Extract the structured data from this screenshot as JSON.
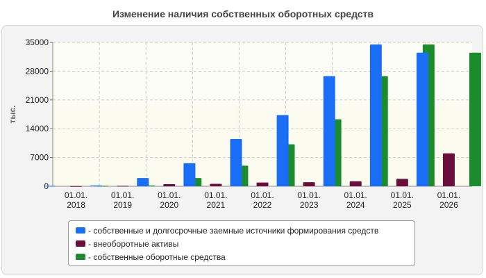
{
  "chart_data": {
    "type": "bar",
    "title": "Изменение наличия собственных оборотных средств",
    "ylabel": "тыс.",
    "ylim": [
      0,
      35000
    ],
    "yticks": [
      0,
      7000,
      14000,
      21000,
      28000,
      35000
    ],
    "categories": [
      [
        "01.01.",
        "2018"
      ],
      [
        "01.01.",
        "2019"
      ],
      [
        "01.01.",
        "2020"
      ],
      [
        "01.01.",
        "2021"
      ],
      [
        "01.01.",
        "2022"
      ],
      [
        "01.01.",
        "2023"
      ],
      [
        "01.01.",
        "2024"
      ],
      [
        "01.01.",
        "2025"
      ],
      [
        "01.01.",
        "2026"
      ]
    ],
    "series": [
      {
        "name": "- собственные и долгосрочные заемные источники формирования средств",
        "color": "#1a6ef5",
        "values": [
          100,
          200,
          2000,
          5600,
          11500,
          17300,
          26800,
          34500,
          32500
        ]
      },
      {
        "name": "- внеоборотные активы",
        "color": "#6b0f3a",
        "values": [
          50,
          100,
          500,
          600,
          900,
          1000,
          1200,
          1800,
          8000
        ]
      },
      {
        "name": "- собственные оборотные средства",
        "color": "#1a8c2e",
        "values": [
          100,
          200,
          2000,
          5000,
          10200,
          16300,
          26800,
          34500,
          32500
        ]
      }
    ],
    "grid": true,
    "legend_position": "bottom"
  }
}
